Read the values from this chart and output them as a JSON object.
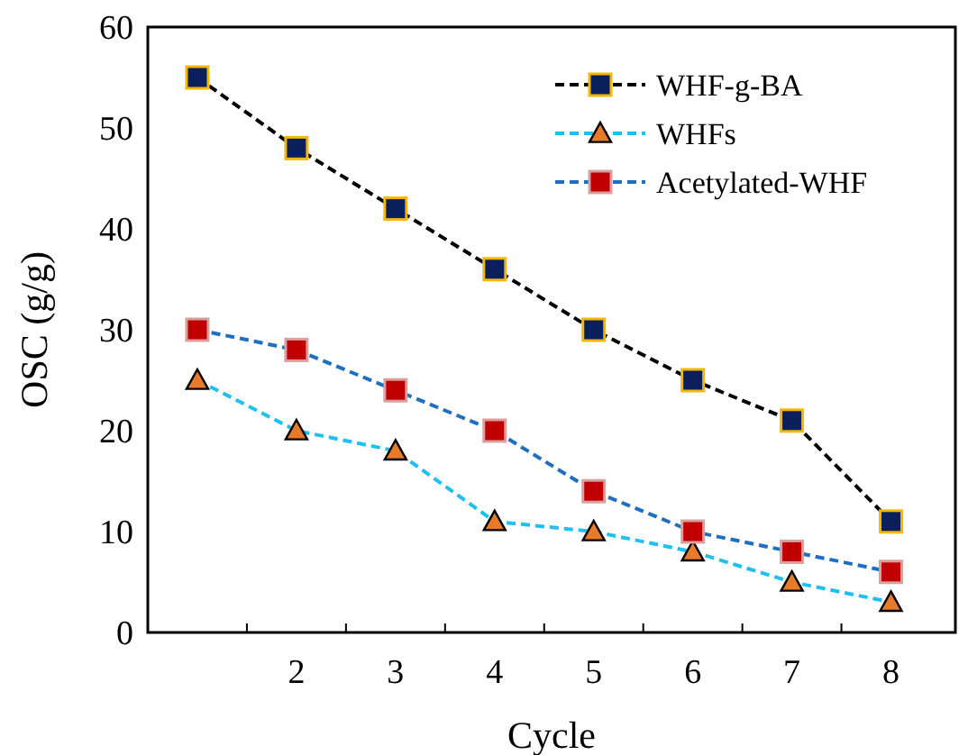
{
  "chart_data": {
    "type": "line",
    "xlabel": "Cycle",
    "ylabel": "OSC (g/g)",
    "categories": [
      null,
      "2",
      "3",
      "4",
      "5",
      "6",
      "7",
      "8"
    ],
    "ylim": [
      0,
      60
    ],
    "yticks": [
      0,
      10,
      20,
      30,
      40,
      50,
      60
    ],
    "legend": "top right",
    "line_style": "dashed",
    "grid": false,
    "series": [
      {
        "name": "WHF-g-BA",
        "color": "#000000",
        "marker": "square",
        "values": [
          55,
          48,
          42,
          36,
          30,
          25,
          21,
          11
        ]
      },
      {
        "name": "WHFs",
        "color": "#1ec0f0",
        "marker": "triangle",
        "values": [
          25,
          20,
          18,
          11,
          10,
          8,
          5,
          3
        ]
      },
      {
        "name": "Acetylated-WHF",
        "color": "#1f6fc0",
        "marker": "square",
        "values": [
          30,
          28,
          24,
          20,
          14,
          10,
          8,
          6
        ]
      }
    ]
  }
}
